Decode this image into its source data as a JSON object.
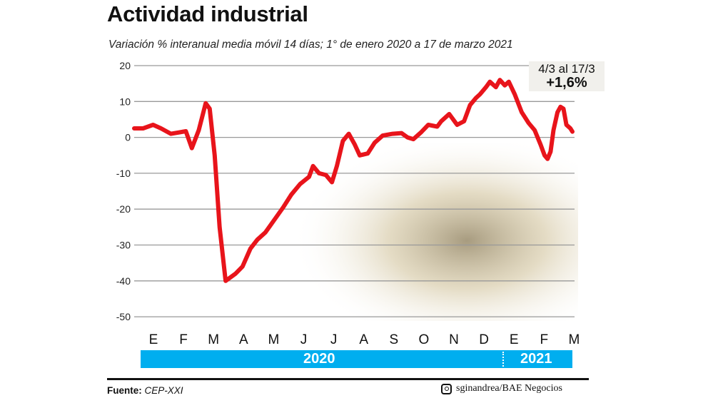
{
  "title": "Actividad industrial",
  "subtitle": "Variación % interanual media móvil 14 días; 1° de enero 2020 a 17 de marzo 2021",
  "annotation": {
    "period": "4/3 al 17/3",
    "value": "+1,6%"
  },
  "source_label": "Fuente:",
  "source": "CEP-XXI",
  "credit": "sginandrea/BAE Negocios",
  "credit_icon": "instagram-icon",
  "colors": {
    "line": "#e8141b",
    "year_bar": "#00aeef",
    "grid": "#999999"
  },
  "chart_data": {
    "type": "line",
    "title": "Actividad industrial",
    "subtitle": "Variación % interanual media móvil 14 días; 1° de enero 2020 a 17 de marzo 2021",
    "xlabel": "",
    "ylabel": "",
    "ylim": [
      -50,
      20
    ],
    "yticks": [
      20,
      10,
      0,
      -10,
      -20,
      -30,
      -40,
      -50
    ],
    "ytick_labels": [
      "20",
      "10",
      "0",
      "-10",
      "-20",
      "-30",
      "-40",
      "-50"
    ],
    "xlim": [
      "2020-01-01",
      "2021-03-17"
    ],
    "month_labels": [
      "E",
      "F",
      "M",
      "A",
      "M",
      "J",
      "J",
      "A",
      "S",
      "O",
      "N",
      "D",
      "E",
      "F",
      "M"
    ],
    "years": [
      "2020",
      "2021"
    ],
    "grid": true,
    "series": [
      {
        "x": [
          "2020-01-01",
          "2020-01-10",
          "2020-01-20",
          "2020-01-28",
          "2020-02-07",
          "2020-02-22",
          "2020-02-28",
          "2020-03-06",
          "2020-03-13",
          "2020-03-17",
          "2020-03-22",
          "2020-03-27",
          "2020-04-02",
          "2020-04-12",
          "2020-04-19",
          "2020-04-27",
          "2020-05-04",
          "2020-05-12",
          "2020-05-21",
          "2020-05-30",
          "2020-06-07",
          "2020-06-16",
          "2020-06-25",
          "2020-06-29",
          "2020-07-05",
          "2020-07-12",
          "2020-07-18",
          "2020-07-23",
          "2020-07-29",
          "2020-08-04",
          "2020-08-10",
          "2020-08-15",
          "2020-08-23",
          "2020-08-30",
          "2020-09-07",
          "2020-09-17",
          "2020-09-26",
          "2020-10-02",
          "2020-10-08",
          "2020-10-16",
          "2020-10-23",
          "2020-11-01",
          "2020-11-05",
          "2020-11-13",
          "2020-11-17",
          "2020-11-21",
          "2020-11-28",
          "2020-12-04",
          "2020-12-10",
          "2020-12-14",
          "2020-12-20",
          "2020-12-24",
          "2020-12-30",
          "2021-01-03",
          "2021-01-08",
          "2021-01-12",
          "2021-01-18",
          "2021-01-25",
          "2021-02-01",
          "2021-02-07",
          "2021-02-13",
          "2021-02-17",
          "2021-02-20",
          "2021-02-23",
          "2021-02-26",
          "2021-03-02",
          "2021-03-05",
          "2021-03-08",
          "2021-03-11",
          "2021-03-15",
          "2021-03-17"
        ],
        "y": [
          2.5,
          2.5,
          3.5,
          2.5,
          1,
          1.7,
          -3,
          2,
          9.5,
          8,
          -5,
          -25,
          -40,
          -38,
          -36,
          -31,
          -28.5,
          -26.5,
          -23,
          -19.5,
          -16,
          -13,
          -11,
          -8,
          -10,
          -10.5,
          -12.5,
          -8,
          -1,
          1,
          -2,
          -5,
          -4.5,
          -1.5,
          0.5,
          1,
          1.2,
          0,
          -0.5,
          1.5,
          3.5,
          3,
          4.5,
          6.5,
          5,
          3.5,
          4.5,
          9,
          11,
          12,
          14,
          15.5,
          14,
          16,
          14.5,
          15.5,
          12,
          7,
          4,
          2,
          -2,
          -5,
          -6,
          -4,
          2,
          7,
          8.5,
          8,
          3.5,
          2.5,
          1.6
        ]
      }
    ]
  }
}
